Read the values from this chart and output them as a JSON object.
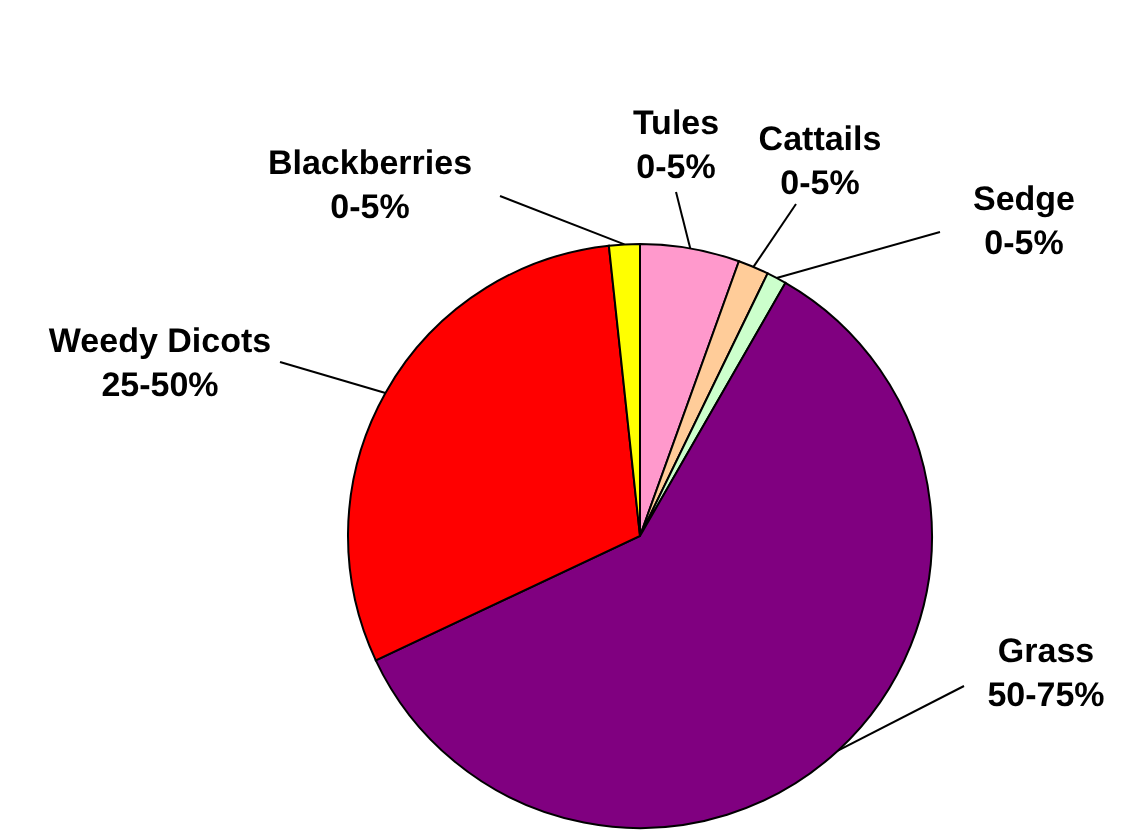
{
  "chart_data": {
    "type": "pie",
    "categories": [
      "Tules",
      "Cattails",
      "Sedge",
      "Grass",
      "Weedy Dicots",
      "Blackberries"
    ],
    "values": [
      5.5,
      1.7,
      1.1,
      59.7,
      30.3,
      1.7
    ],
    "colors": [
      "#ff99cc",
      "#ffcc99",
      "#ccffcc",
      "#800080",
      "#ff0000",
      "#ffff00"
    ],
    "annotations": [
      {
        "text": "0-5%",
        "x": "Tules"
      },
      {
        "text": "0-5%",
        "x": "Cattails"
      },
      {
        "text": "0-5%",
        "x": "Sedge"
      },
      {
        "text": "50-75%",
        "x": "Grass"
      },
      {
        "text": "25-50%",
        "x": "Weedy Dicots"
      },
      {
        "text": "0-5%",
        "x": "Blackberries"
      }
    ]
  }
}
